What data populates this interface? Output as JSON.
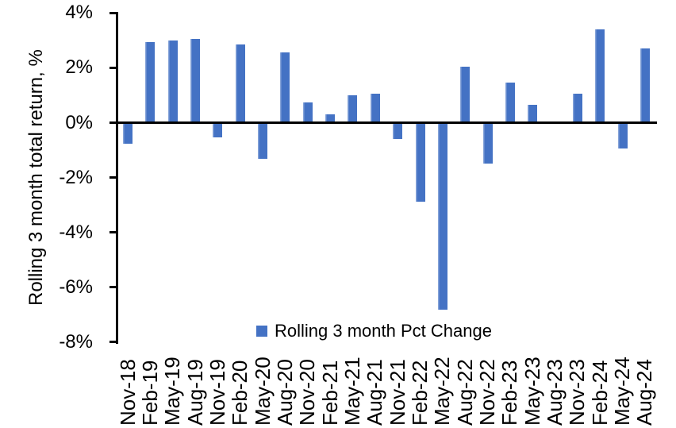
{
  "chart_data": {
    "type": "bar",
    "title": "",
    "xlabel": "",
    "ylabel": "Rolling 3 month total return, %",
    "categories": [
      "Nov-18",
      "Feb-19",
      "May-19",
      "Aug-19",
      "Nov-19",
      "Feb-20",
      "May-20",
      "Aug-20",
      "Nov-20",
      "Feb-21",
      "May-21",
      "Aug-21",
      "Nov-21",
      "Feb-22",
      "May-22",
      "Aug-22",
      "Nov-22",
      "Feb-23",
      "May-23",
      "Aug-23",
      "Nov-23",
      "Feb-24",
      "May-24",
      "Aug-24"
    ],
    "values": [
      -0.75,
      2.95,
      3.0,
      3.05,
      -0.5,
      2.85,
      -1.3,
      2.55,
      0.75,
      0.3,
      1.0,
      1.05,
      -0.55,
      -2.85,
      -6.8,
      2.05,
      -1.45,
      1.45,
      0.65,
      0.0,
      1.05,
      3.4,
      -0.9,
      2.7
    ],
    "series": [
      {
        "name": "Rolling 3 month Pct Change",
        "color": "#4472C4"
      }
    ],
    "ylim": [
      -8,
      4
    ],
    "yticks": [
      {
        "value": 4,
        "label": "4%"
      },
      {
        "value": 2,
        "label": "2%"
      },
      {
        "value": 0,
        "label": "0%"
      },
      {
        "value": -2,
        "label": "-2%"
      },
      {
        "value": -4,
        "label": "-4%"
      },
      {
        "value": -6,
        "label": "-6%"
      },
      {
        "value": -8,
        "label": "-8%"
      }
    ],
    "grid": false,
    "legend_position": "bottom-center",
    "colors": {
      "bar": "#4472C4",
      "axis": "#000000",
      "text": "#000000",
      "background": "#FFFFFF"
    }
  },
  "legend": {
    "label": "Rolling 3 month Pct Change",
    "marker_color": "#4472C4"
  }
}
